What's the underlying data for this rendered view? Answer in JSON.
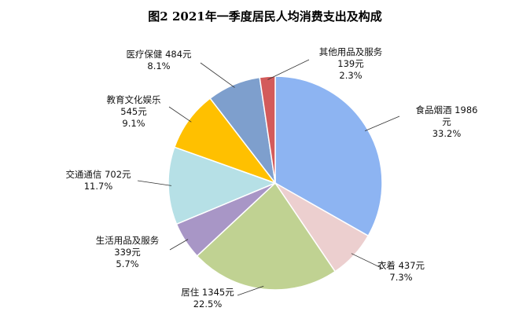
{
  "chart_data": {
    "type": "pie",
    "title": "图2    2021年一季度居民人均消费支出及构成",
    "slices": [
      {
        "name": "食品烟酒",
        "value": 1986,
        "value_text": "1986元",
        "percent": "33.2%",
        "color": "#8DB4F2",
        "label_lines": [
          "食品烟酒 1986",
          "元",
          "33.2%"
        ]
      },
      {
        "name": "衣着",
        "value": 437,
        "value_text": "437元",
        "percent": "7.3%",
        "color": "#ECCFCF",
        "label_lines": [
          "衣着 437元",
          "7.3%"
        ]
      },
      {
        "name": "居住",
        "value": 1345,
        "value_text": "1345元",
        "percent": "22.5%",
        "color": "#C0D292",
        "label_lines": [
          "居住 1345元",
          "22.5%"
        ]
      },
      {
        "name": "生活用品及服务",
        "value": 339,
        "value_text": "339元",
        "percent": "5.7%",
        "color": "#A896C6",
        "label_lines": [
          "生活用品及服务",
          "339元",
          "5.7%"
        ]
      },
      {
        "name": "交通通信",
        "value": 702,
        "value_text": "702元",
        "percent": "11.7%",
        "color": "#B6E0E6",
        "label_lines": [
          "交通通信 702元",
          "11.7%"
        ]
      },
      {
        "name": "教育文化娱乐",
        "value": 545,
        "value_text": "545元",
        "percent": "9.1%",
        "color": "#FFC000",
        "label_lines": [
          "教育文化娱乐",
          "545元",
          "9.1%"
        ]
      },
      {
        "name": "医疗保健",
        "value": 484,
        "value_text": "484元",
        "percent": "8.1%",
        "color": "#7E9FCD",
        "label_lines": [
          "医疗保健 484元",
          "8.1%"
        ]
      },
      {
        "name": "其他用品及服务",
        "value": 139,
        "value_text": "139元",
        "percent": "2.3%",
        "color": "#D35B5B",
        "label_lines": [
          "其他用品及服务",
          "139元",
          "2.3%"
        ]
      }
    ]
  }
}
